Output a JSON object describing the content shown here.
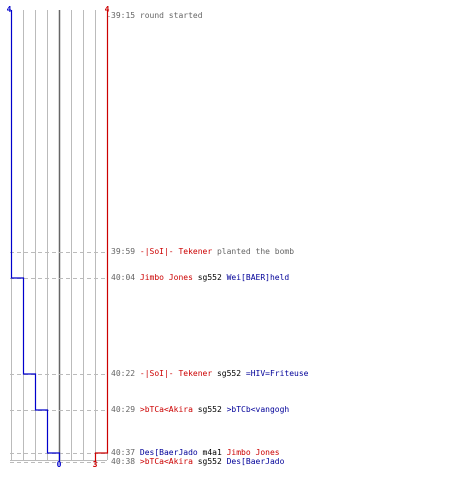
{
  "colors": {
    "blue_team": "#0000cc",
    "red_team": "#cc0000",
    "grid": "#bbbbbb",
    "grid_center": "#666666",
    "dashed": "#bbbbbb",
    "time_text": "#666666",
    "blue_name": "#000099",
    "red_name": "#cc0000"
  },
  "chart_data": {
    "type": "line",
    "title": "",
    "series": [
      {
        "team": "blue",
        "color": "#0000cc",
        "start_label": "4",
        "end_label": "0",
        "alive": [
          4,
          4,
          3,
          2,
          1,
          0,
          0
        ]
      },
      {
        "team": "red",
        "color": "#cc0000",
        "start_label": "4",
        "end_label": "3",
        "alive": [
          4,
          4,
          4,
          4,
          4,
          3,
          3
        ]
      }
    ],
    "event_times": [
      "39:15",
      "39:59",
      "40:04",
      "40:22",
      "40:29",
      "40:37",
      "40:38"
    ]
  },
  "events": [
    {
      "time": "39:15",
      "parts": [
        {
          "text": "round started",
          "style": "msg"
        }
      ]
    },
    {
      "time": "39:59",
      "parts": [
        {
          "text": "-|SoI|- Tekener",
          "style": "c-red"
        },
        {
          "text": " planted the bomb",
          "style": "msg"
        }
      ]
    },
    {
      "time": "40:04",
      "parts": [
        {
          "text": "Jimbo Jones",
          "style": "c-red"
        },
        {
          "text": " sg552 ",
          "style": "c-black"
        },
        {
          "text": "Wei[BAER]held",
          "style": "c-blue"
        }
      ]
    },
    {
      "time": "40:22",
      "parts": [
        {
          "text": "-|SoI|- Tekener",
          "style": "c-red"
        },
        {
          "text": " sg552 ",
          "style": "c-black"
        },
        {
          "text": "=HIV=Friteuse",
          "style": "c-blue"
        }
      ]
    },
    {
      "time": "40:29",
      "parts": [
        {
          "text": ">bTCa<Akira",
          "style": "c-red"
        },
        {
          "text": " sg552 ",
          "style": "c-black"
        },
        {
          "text": ">bTCb<vangogh",
          "style": "c-blue"
        }
      ]
    },
    {
      "time": "40:37",
      "parts": [
        {
          "text": "Des[BaerJado",
          "style": "c-blue"
        },
        {
          "text": " m4a1 ",
          "style": "c-black"
        },
        {
          "text": "Jimbo Jones",
          "style": "c-red"
        }
      ]
    },
    {
      "time": "40:38",
      "parts": [
        {
          "text": ">bTCa<Akira",
          "style": "c-red"
        },
        {
          "text": " sg552 ",
          "style": "c-black"
        },
        {
          "text": "Des[BaerJado",
          "style": "c-blue"
        }
      ]
    }
  ]
}
